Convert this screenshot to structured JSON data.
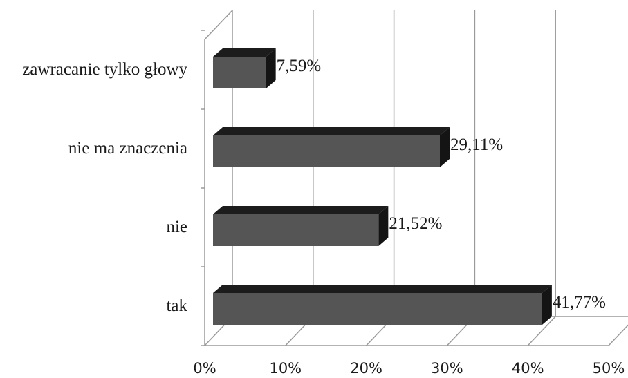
{
  "chart_data": {
    "type": "bar",
    "orientation": "horizontal",
    "style": "3d",
    "categories": [
      "tak",
      "nie",
      "nie ma znaczenia",
      "zawracanie tylko głowy"
    ],
    "values": [
      41.77,
      21.52,
      29.11,
      7.59
    ],
    "value_labels": [
      "41,77%",
      "21,52%",
      "29,11%",
      "7,59%"
    ],
    "xlim": [
      0,
      50
    ],
    "xticks": [
      0,
      10,
      20,
      30,
      40,
      50
    ],
    "xtick_labels": [
      "0%",
      "10%",
      "20%",
      "30%",
      "40%",
      "50%"
    ],
    "grid": true,
    "legend": "none",
    "colors": {
      "bar_front": "#555555",
      "bar_top": "#1c1c1c",
      "bar_side": "#141414",
      "grid": "#9a9a9a",
      "wall": "#ffffff",
      "text": "#1a1a1a"
    }
  }
}
